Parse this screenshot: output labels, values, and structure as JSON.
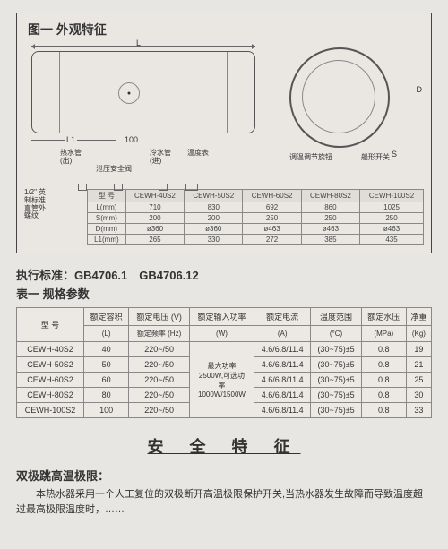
{
  "figure": {
    "title": "图一 外观特征",
    "dims": {
      "L": "L",
      "L1": "L1",
      "d100": "100",
      "D": "D",
      "S": "S"
    },
    "labels": {
      "hot_pipe": "热水管\n(出)",
      "cold_pipe": "冷水管\n(进)",
      "temp_gauge": "温度表",
      "safety_valve": "泄压安全阀",
      "thread": "1/2\" 英\n制标准\n直管外\n螺纹",
      "temp_knob": "调温调节旋钮",
      "ship_switch": "船形开关"
    },
    "badge": "●"
  },
  "spec_table": {
    "headers": [
      "型 号",
      "CEWH-40S2",
      "CEWH-50S2",
      "CEWH-60S2",
      "CEWH-80S2",
      "CEWH-100S2"
    ],
    "rows": [
      [
        "L(mm)",
        "710",
        "830",
        "692",
        "860",
        "1025"
      ],
      [
        "S(mm)",
        "200",
        "200",
        "250",
        "250",
        "250"
      ],
      [
        "D(mm)",
        "ø360",
        "ø360",
        "ø463",
        "ø463",
        "ø463"
      ],
      [
        "L1(mm)",
        "265",
        "330",
        "272",
        "385",
        "435"
      ]
    ]
  },
  "section2": {
    "std_line": "执行标准：GB4706.1　GB4706.12",
    "tbl_title": "表一 规格参数",
    "headers": {
      "model": "型 号",
      "capacity": "额定容积",
      "capacity_u": "(L)",
      "voltage": "额定电压 (V)",
      "freq": "额定频率 (Hz)",
      "power": "额定输入功率",
      "power_u": "(W)",
      "current": "额定电流",
      "current_u": "(A)",
      "temp": "温度范围",
      "temp_u": "(°C)",
      "pressure": "额定水压",
      "pressure_u": "(MPa)",
      "weight": "净重",
      "weight_u": "(Kg)"
    },
    "power_note": "最大功率\n2500W,可选功\n率\n1000W/1500W",
    "rows": [
      {
        "model": "CEWH-40S2",
        "cap": "40",
        "vf": "220~/50",
        "cur": "4.6/6.8/11.4",
        "temp": "(30~75)±5",
        "pres": "0.8",
        "wt": "19"
      },
      {
        "model": "CEWH-50S2",
        "cap": "50",
        "vf": "220~/50",
        "cur": "4.6/6.8/11.4",
        "temp": "(30~75)±5",
        "pres": "0.8",
        "wt": "21"
      },
      {
        "model": "CEWH-60S2",
        "cap": "60",
        "vf": "220~/50",
        "cur": "4.6/6.8/11.4",
        "temp": "(30~75)±5",
        "pres": "0.8",
        "wt": "25"
      },
      {
        "model": "CEWH-80S2",
        "cap": "80",
        "vf": "220~/50",
        "cur": "4.6/6.8/11.4",
        "temp": "(30~75)±5",
        "pres": "0.8",
        "wt": "30"
      },
      {
        "model": "CEWH-100S2",
        "cap": "100",
        "vf": "220~/50",
        "cur": "4.6/6.8/11.4",
        "temp": "(30~75)±5",
        "pres": "0.8",
        "wt": "33"
      }
    ]
  },
  "safety": {
    "title": "安 全 特 征",
    "sub": "双极跳高温极限：",
    "body": "本热水器采用一个人工复位的双极断开高温极限保护开关,当热水器发生故障而导致温度超过最高极限温度时，……"
  }
}
